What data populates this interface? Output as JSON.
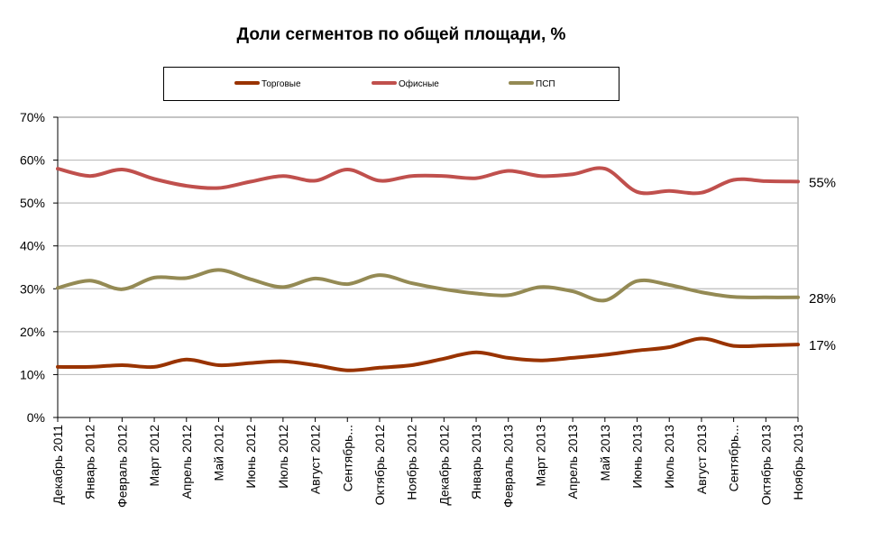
{
  "chart_data": {
    "type": "line",
    "title": "Доли сегментов по общей площади, %",
    "xlabel": "",
    "ylabel": "",
    "ylim": [
      0,
      70
    ],
    "yticks": [
      "0%",
      "10%",
      "20%",
      "30%",
      "40%",
      "50%",
      "60%",
      "70%"
    ],
    "grid": true,
    "legend_position": "top",
    "categories": [
      "Декабрь 2011",
      "Январь 2012",
      "Февраль 2012",
      "Март 2012",
      "Апрель 2012",
      "Май 2012",
      "Июнь 2012",
      "Июль 2012",
      "Август 2012",
      "Сентябрь...",
      "Октябрь 2012",
      "Ноябрь 2012",
      "Декабрь 2012",
      "Январь 2013",
      "Февраль 2013",
      "Март 2013",
      "Апрель 2013",
      "Май 2013",
      "Июнь 2013",
      "Июль 2013",
      "Август 2013",
      "Сентябрь...",
      "Октябрь 2013",
      "Ноябрь 2013"
    ],
    "series": [
      {
        "name": "Торговые",
        "color": "#993300",
        "values": [
          11.8,
          11.8,
          12.2,
          11.8,
          13.5,
          12.2,
          12.7,
          13.1,
          12.2,
          11.0,
          11.6,
          12.2,
          13.7,
          15.2,
          13.9,
          13.3,
          13.9,
          14.6,
          15.6,
          16.4,
          18.4,
          16.7,
          16.8,
          17.0
        ],
        "end_label": "17%"
      },
      {
        "name": "Офисные",
        "color": "#C0504D",
        "values": [
          58.0,
          56.3,
          57.8,
          55.6,
          54.0,
          53.5,
          55.0,
          56.3,
          55.2,
          57.8,
          55.2,
          56.3,
          56.3,
          55.8,
          57.5,
          56.3,
          56.7,
          58.0,
          52.6,
          52.8,
          52.4,
          55.4,
          55.1,
          55.0
        ],
        "end_label": "55%"
      },
      {
        "name": "ПСП",
        "color": "#948A54",
        "values": [
          30.2,
          31.9,
          29.9,
          32.6,
          32.5,
          34.4,
          32.2,
          30.4,
          32.4,
          31.1,
          33.2,
          31.3,
          29.9,
          28.9,
          28.5,
          30.4,
          29.4,
          27.3,
          31.8,
          30.9,
          29.2,
          28.1,
          28.0,
          28.0
        ],
        "end_label": "28%"
      }
    ]
  }
}
